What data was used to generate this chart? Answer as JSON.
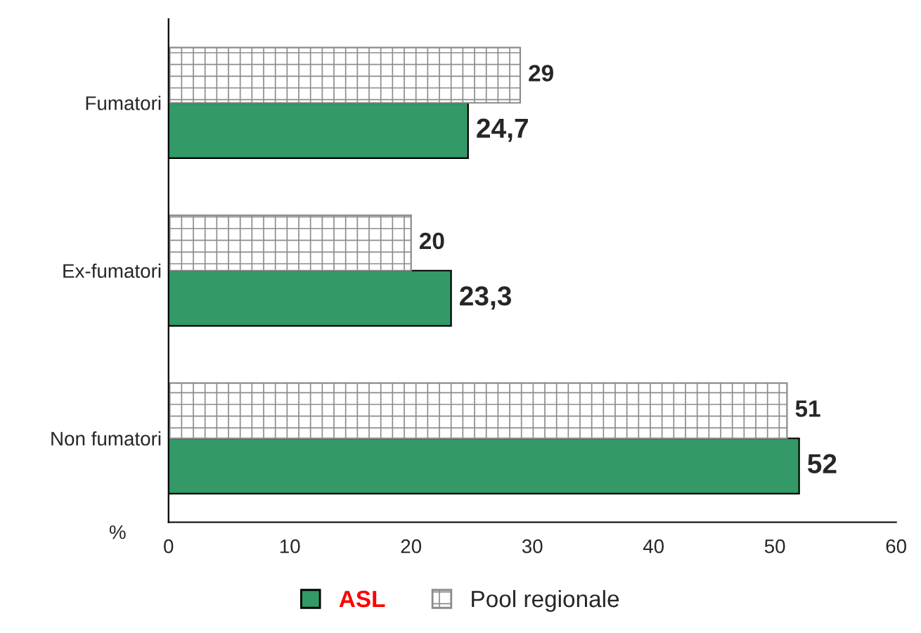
{
  "chart_data": {
    "type": "bar",
    "orientation": "horizontal",
    "xlabel": "%",
    "categories": [
      "Fumatori",
      "Ex-fumatori",
      "Non fumatori"
    ],
    "series": [
      {
        "name": "ASL",
        "color": "#339966",
        "values": [
          24.7,
          23.3,
          52
        ],
        "value_labels": [
          "24,7",
          "23,3",
          "52"
        ]
      },
      {
        "name": "Pool regionale",
        "color": "#8c8c8c",
        "values": [
          29,
          20,
          51
        ],
        "value_labels": [
          "29",
          "20",
          "51"
        ]
      }
    ],
    "xlim": [
      0,
      60
    ],
    "xticks": [
      0,
      10,
      20,
      30,
      40,
      50,
      60
    ],
    "grid": false,
    "legend": "bottom"
  }
}
